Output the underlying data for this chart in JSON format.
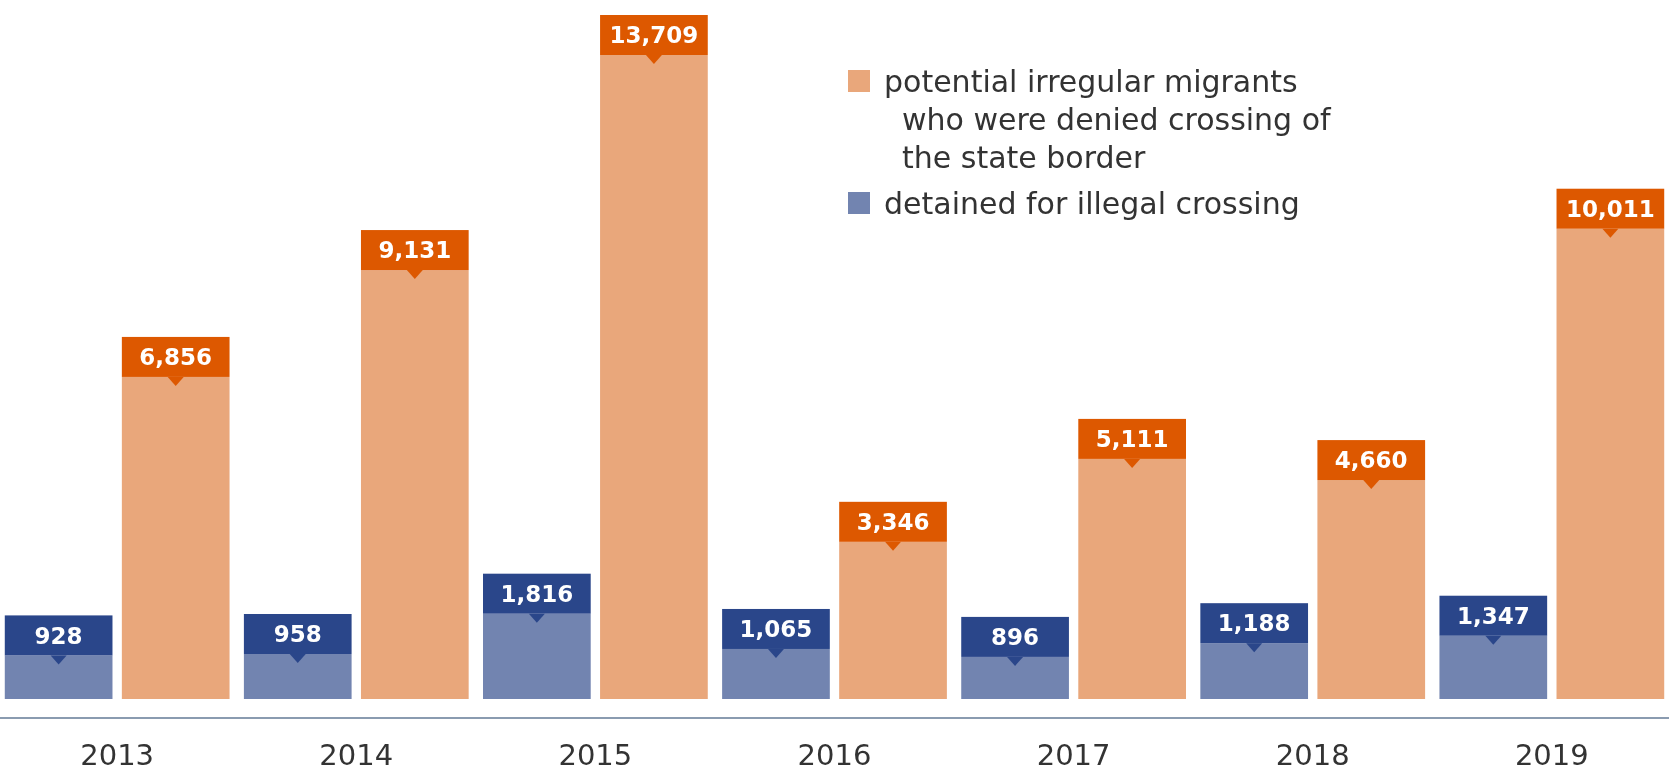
{
  "chart_data": {
    "type": "bar",
    "categories": [
      "2013",
      "2014",
      "2015",
      "2016",
      "2017",
      "2018",
      "2019"
    ],
    "series": [
      {
        "name": "detained for illegal crossing",
        "color": "#7284b0",
        "values": [
          928,
          958,
          1816,
          1065,
          896,
          1188,
          1347
        ],
        "value_labels": [
          "928",
          "958",
          "1,816",
          "1,065",
          "896",
          "1,188",
          "1,347"
        ]
      },
      {
        "name": "potential irregular migrants who were denied crossing of the state border",
        "color": "#e9a77b",
        "values": [
          6856,
          9131,
          13709,
          3346,
          5111,
          4660,
          10011
        ],
        "value_labels": [
          "6,856",
          "9,131",
          "13,709",
          "3,346",
          "5,111",
          "4,660",
          "10,011"
        ]
      }
    ],
    "legend": "top right"
  }
}
